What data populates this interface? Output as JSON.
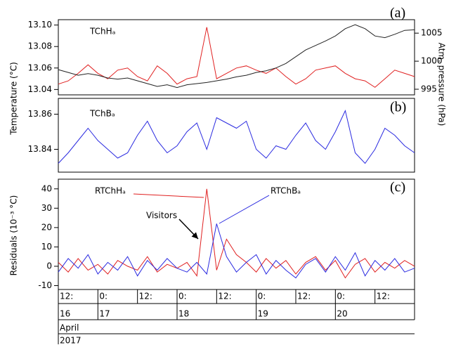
{
  "chart_data": [
    {
      "type": "line",
      "panel_label": "(a)",
      "ylabel": "Temperature (°C)",
      "y2label": "Atm. pressure (hPa)",
      "x": [
        12,
        15,
        18,
        21,
        24,
        27,
        30,
        33,
        36,
        39,
        42,
        45,
        48,
        51,
        54,
        57,
        60,
        63,
        66,
        69,
        72,
        75,
        78,
        81,
        84,
        87,
        90,
        93,
        96,
        99,
        102,
        105,
        108,
        111,
        114,
        117,
        120
      ],
      "xlim": [
        12,
        120
      ],
      "ylim": [
        13.035,
        13.105
      ],
      "yticks": [
        13.04,
        13.06,
        13.08,
        {
          "value": 13.1,
          "label": "13.10"
        }
      ],
      "y2lim": [
        994,
        1007.4
      ],
      "y2ticks": [
        995,
        1000,
        1005
      ],
      "series": [
        {
          "name": "TChHₐ",
          "color": "#e02020",
          "values": [
            13.045,
            13.048,
            13.055,
            13.063,
            13.055,
            13.05,
            13.058,
            13.06,
            13.052,
            13.048,
            13.062,
            13.055,
            13.045,
            13.05,
            13.052,
            13.098,
            13.05,
            13.055,
            13.06,
            13.062,
            13.058,
            13.055,
            13.06,
            13.052,
            13.045,
            13.05,
            13.058,
            13.06,
            13.062,
            13.055,
            13.05,
            13.048,
            13.042,
            13.05,
            13.058,
            13.055,
            13.052
          ]
        },
        {
          "color": "#222222",
          "axis": "y2",
          "values": [
            998.5,
            998,
            997.5,
            997.8,
            997.5,
            997,
            996.8,
            997,
            996.5,
            996,
            995.5,
            995.8,
            995.3,
            995.8,
            996,
            996.2,
            996.5,
            996.8,
            997.2,
            997.5,
            998,
            998.3,
            998.8,
            999.6,
            1000.8,
            1002,
            1002.8,
            1003.6,
            1004.5,
            1005.8,
            1006.5,
            1005.8,
            1004.5,
            1004.2,
            1004.8,
            1005.5,
            1005.6
          ]
        }
      ]
    },
    {
      "type": "line",
      "panel_label": "(b)",
      "x": [
        12,
        15,
        18,
        21,
        24,
        27,
        30,
        33,
        36,
        39,
        42,
        45,
        48,
        51,
        54,
        57,
        60,
        63,
        66,
        69,
        72,
        75,
        78,
        81,
        84,
        87,
        90,
        93,
        96,
        99,
        102,
        105,
        108,
        111,
        114,
        117,
        120
      ],
      "xlim": [
        12,
        120
      ],
      "ylim": [
        13.827,
        13.869
      ],
      "yticks": [
        13.84,
        13.86
      ],
      "series": [
        {
          "name": "TChBₐ",
          "color": "#2a2ae0",
          "values": [
            13.832,
            13.838,
            13.845,
            13.852,
            13.845,
            13.84,
            13.835,
            13.838,
            13.848,
            13.856,
            13.845,
            13.838,
            13.842,
            13.85,
            13.855,
            13.84,
            13.858,
            13.855,
            13.852,
            13.856,
            13.84,
            13.835,
            13.842,
            13.84,
            13.848,
            13.855,
            13.845,
            13.84,
            13.85,
            13.862,
            13.838,
            13.832,
            13.84,
            13.852,
            13.848,
            13.842,
            13.838
          ]
        }
      ]
    },
    {
      "type": "line",
      "panel_label": "(c)",
      "ylabel": "Residuals (10⁻³ °C)",
      "annotation": "Visitors",
      "x": [
        12,
        15,
        18,
        21,
        24,
        27,
        30,
        33,
        36,
        39,
        42,
        45,
        48,
        51,
        54,
        57,
        60,
        63,
        66,
        69,
        72,
        75,
        78,
        81,
        84,
        87,
        90,
        93,
        96,
        99,
        102,
        105,
        108,
        111,
        114,
        117,
        120
      ],
      "xlim": [
        12,
        120
      ],
      "ylim": [
        -12,
        45
      ],
      "yticks": [
        -10,
        0,
        10,
        20,
        30,
        40
      ],
      "xticks": [
        {
          "value": 12,
          "label": "12:"
        },
        {
          "value": 24,
          "label": "0:"
        },
        {
          "value": 36,
          "label": "12:"
        },
        {
          "value": 48,
          "label": "0:"
        },
        {
          "value": 60,
          "label": "12:"
        },
        {
          "value": 72,
          "label": "0:"
        },
        {
          "value": 84,
          "label": "12:"
        },
        {
          "value": 96,
          "label": "0:"
        },
        {
          "value": 108,
          "label": "12:"
        }
      ],
      "dates": [
        {
          "value": 12,
          "label": "16"
        },
        {
          "value": 24,
          "label": "17"
        },
        {
          "value": 48,
          "label": "18"
        },
        {
          "value": 72,
          "label": "19"
        },
        {
          "value": 96,
          "label": "20"
        }
      ],
      "month": "April",
      "year": "2017",
      "series": [
        {
          "name": "RTChHₐ",
          "color": "#e02020",
          "values": [
            2,
            -3,
            4,
            -2,
            1,
            -4,
            3,
            0,
            -2,
            5,
            -3,
            1,
            -1,
            2,
            -5,
            40,
            -2,
            14,
            6,
            2,
            -3,
            4,
            -1,
            3,
            -4,
            2,
            5,
            -2,
            3,
            -6,
            1,
            4,
            -3,
            2,
            -1,
            3,
            0
          ]
        },
        {
          "name": "RTChBₐ",
          "color": "#2a2ae0",
          "values": [
            -3,
            4,
            -1,
            6,
            -4,
            2,
            -2,
            5,
            -5,
            3,
            -2,
            4,
            -1,
            -3,
            2,
            -4,
            22,
            5,
            -3,
            2,
            6,
            -4,
            3,
            -2,
            -6,
            1,
            4,
            -3,
            5,
            -2,
            7,
            -5,
            3,
            -2,
            4,
            -3,
            -1
          ]
        }
      ]
    }
  ]
}
